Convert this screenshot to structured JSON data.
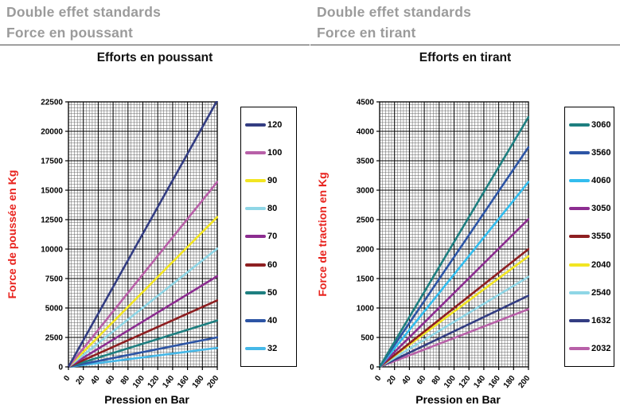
{
  "colors": {
    "header_gray": "#9b9b9b",
    "title_black": "#111111",
    "axis_label_red": "#e8231e",
    "grid_major": "#000000",
    "grid_minor": "#606060"
  },
  "chart_data": [
    {
      "type": "line",
      "header1": "Double effet standards",
      "header2": "Force en poussant",
      "title": "Efforts en poussant",
      "xlabel": "Pression  en Bar",
      "ylabel": "Force de poussée  en Kg",
      "xlim": [
        0,
        200
      ],
      "ylim": [
        0,
        22500
      ],
      "x_tick_step": 20,
      "y_tick_step": 2500,
      "x_minor_step": 4,
      "y_minor_step": 250,
      "grid": true,
      "legend_position": "right",
      "series": [
        {
          "name": "120",
          "color": "#333d82",
          "x": [
            0,
            200
          ],
          "y": [
            0,
            22620
          ]
        },
        {
          "name": "100",
          "color": "#b860a8",
          "x": [
            0,
            200
          ],
          "y": [
            0,
            15710
          ]
        },
        {
          "name": "90",
          "color": "#f2e522",
          "x": [
            0,
            200
          ],
          "y": [
            0,
            12720
          ]
        },
        {
          "name": "80",
          "color": "#8fd6e6",
          "x": [
            0,
            200
          ],
          "y": [
            0,
            10050
          ]
        },
        {
          "name": "70",
          "color": "#8c2d90",
          "x": [
            0,
            200
          ],
          "y": [
            0,
            7700
          ]
        },
        {
          "name": "60",
          "color": "#8e1f21",
          "x": [
            0,
            200
          ],
          "y": [
            0,
            5650
          ]
        },
        {
          "name": "50",
          "color": "#1e7f80",
          "x": [
            0,
            200
          ],
          "y": [
            0,
            3930
          ]
        },
        {
          "name": "40",
          "color": "#2d55a5",
          "x": [
            0,
            200
          ],
          "y": [
            0,
            2510
          ]
        },
        {
          "name": "32",
          "color": "#45b8e8",
          "x": [
            0,
            200
          ],
          "y": [
            0,
            1610
          ]
        }
      ]
    },
    {
      "type": "line",
      "header1": "Double effet standards",
      "header2": "Force en tirant",
      "title": "Efforts en tirant",
      "xlabel": "Pression  en Bar",
      "ylabel": "Force de traction en Kg",
      "xlim": [
        0,
        200
      ],
      "ylim": [
        0,
        4500
      ],
      "x_tick_step": 20,
      "y_tick_step": 500,
      "x_minor_step": 4,
      "y_minor_step": 50,
      "grid": true,
      "legend_position": "right",
      "series": [
        {
          "name": "3060",
          "color": "#1e7f80",
          "x": [
            0,
            200
          ],
          "y": [
            0,
            4240
          ]
        },
        {
          "name": "3560",
          "color": "#2d55a5",
          "x": [
            0,
            200
          ],
          "y": [
            0,
            3730
          ]
        },
        {
          "name": "4060",
          "color": "#33bdee",
          "x": [
            0,
            200
          ],
          "y": [
            0,
            3140
          ]
        },
        {
          "name": "3050",
          "color": "#8c2d90",
          "x": [
            0,
            200
          ],
          "y": [
            0,
            2510
          ]
        },
        {
          "name": "3550",
          "color": "#8e1f21",
          "x": [
            0,
            200
          ],
          "y": [
            0,
            2000
          ]
        },
        {
          "name": "2040",
          "color": "#f2e522",
          "x": [
            0,
            200
          ],
          "y": [
            0,
            1880
          ]
        },
        {
          "name": "2540",
          "color": "#8fd6e6",
          "x": [
            0,
            200
          ],
          "y": [
            0,
            1530
          ]
        },
        {
          "name": "1632",
          "color": "#333d82",
          "x": [
            0,
            200
          ],
          "y": [
            0,
            1210
          ]
        },
        {
          "name": "2032",
          "color": "#b860a8",
          "x": [
            0,
            200
          ],
          "y": [
            0,
            980
          ]
        }
      ]
    }
  ]
}
